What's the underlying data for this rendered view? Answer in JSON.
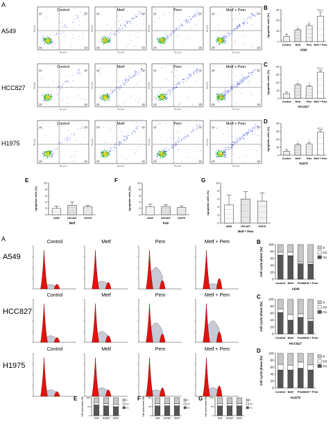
{
  "figure": {
    "top_panel_letter": "A",
    "bottom_panel_letter": "A",
    "cell_lines": [
      "A549",
      "HCC827",
      "H1975"
    ],
    "treatments": [
      "Control",
      "Metf",
      "Pem",
      "Metf + Pem"
    ],
    "flow_axis_x": "FL1-H",
    "flow_axis_y": "FL2-H",
    "quadrants": [
      "Q1",
      "Q2",
      "Q3",
      "Q4"
    ],
    "dot_colors": {
      "low": "#2a3cd6",
      "mid": "#19b319",
      "high": "#e0d400"
    },
    "histogram_fill": "#e0130f",
    "histogram_shade": "#c9c9d6"
  },
  "chart_data": [
    {
      "id": "B",
      "type": "bar",
      "panel_label": "B",
      "categories": [
        "Control",
        "Metf",
        "Pem",
        "Metf + Pem"
      ],
      "values": [
        5,
        11,
        15,
        24
      ],
      "errors": [
        2,
        1,
        1.5,
        4
      ],
      "annotations": [
        "",
        "*",
        "*",
        "#,*,△"
      ],
      "ylabel": "Apoptotic cells (%)",
      "xlabel": "A549",
      "ylim": [
        0,
        30
      ],
      "yticks": [
        0,
        10,
        20,
        30
      ]
    },
    {
      "id": "C",
      "type": "bar",
      "panel_label": "C",
      "categories": [
        "Control",
        "Metf",
        "Pem",
        "Metf + Pem"
      ],
      "values": [
        6,
        17,
        15,
        33
      ],
      "errors": [
        2,
        1.5,
        1.5,
        2.5
      ],
      "annotations": [
        "",
        "*",
        "*",
        "#,*,△"
      ],
      "ylabel": "Apoptotic cells (%)",
      "xlabel": "HCC827",
      "ylim": [
        0,
        40
      ],
      "yticks": [
        0,
        10,
        20,
        30,
        40
      ]
    },
    {
      "id": "D",
      "type": "bar",
      "panel_label": "D",
      "categories": [
        "Control",
        "Metf",
        "Pem",
        "Metf + Pem"
      ],
      "values": [
        5,
        13,
        14,
        29
      ],
      "errors": [
        2,
        1.5,
        2,
        2.5
      ],
      "annotations": [
        "",
        "*",
        "*",
        "#,*,△"
      ],
      "ylabel": "Apoptotic cells (%)",
      "xlabel": "H1975",
      "ylim": [
        0,
        40
      ],
      "yticks": [
        0,
        10,
        20,
        30,
        40
      ]
    },
    {
      "id": "E",
      "type": "bar",
      "panel_label": "E",
      "categories": [
        "A549",
        "HCC827",
        "H1975"
      ],
      "values": [
        2,
        3,
        2.5
      ],
      "errors": [
        0.7,
        1,
        0.5
      ],
      "ylabel": "Apoptotic cells (%)",
      "xlabel": "Metf",
      "ylim": [
        0,
        10
      ],
      "yticks": [
        0,
        2,
        4,
        6,
        8,
        10
      ]
    },
    {
      "id": "F",
      "type": "bar",
      "panel_label": "F",
      "categories": [
        "A549",
        "HCC827",
        "H1975"
      ],
      "values": [
        2.5,
        2.6,
        2.3
      ],
      "errors": [
        0.8,
        0.6,
        0.5
      ],
      "ylabel": "Apoptotic cells (%)",
      "xlabel": "Pem",
      "ylim": [
        0,
        10
      ],
      "yticks": [
        0,
        2,
        4,
        6,
        8,
        10
      ]
    },
    {
      "id": "G",
      "type": "bar",
      "panel_label": "G",
      "categories": [
        "A549",
        "HCC827",
        "H1975"
      ],
      "values": [
        4.5,
        6,
        5.5
      ],
      "errors": [
        2.5,
        1.8,
        2
      ],
      "ylabel": "Apoptotic cells (%)",
      "xlabel": "Metf + Pem",
      "ylim": [
        0,
        10
      ],
      "yticks": [
        0,
        2,
        4,
        6,
        8,
        10
      ]
    },
    {
      "id": "B2",
      "type": "bar",
      "stacked": true,
      "panel_label": "B",
      "categories": [
        "Control",
        "Metf",
        "Pem",
        "Metf + Pem"
      ],
      "series": [
        {
          "name": "G1",
          "values": [
            70,
            68,
            45,
            44
          ],
          "color": "#555555"
        },
        {
          "name": "G2",
          "values": [
            8,
            10,
            5,
            5
          ],
          "color": "#ffffff"
        },
        {
          "name": "S",
          "values": [
            22,
            22,
            50,
            51
          ],
          "color": "#c7c7c7"
        }
      ],
      "ylabel": "Cell cycle phase (%)",
      "xlabel": "A549",
      "ylim": [
        0,
        100
      ],
      "yticks": [
        0,
        20,
        40,
        60,
        80,
        100
      ]
    },
    {
      "id": "C2",
      "type": "bar",
      "stacked": true,
      "panel_label": "C",
      "categories": [
        "Control",
        "Metf",
        "Pem",
        "Metf + Pem"
      ],
      "series": [
        {
          "name": "G1",
          "values": [
            62,
            40,
            48,
            37
          ],
          "color": "#555555"
        },
        {
          "name": "G2",
          "values": [
            10,
            16,
            10,
            7
          ],
          "color": "#ffffff"
        },
        {
          "name": "S",
          "values": [
            28,
            44,
            42,
            56
          ],
          "color": "#c7c7c7"
        }
      ],
      "ylabel": "Cell cycle phase (%)",
      "xlabel": "HCC827",
      "ylim": [
        0,
        100
      ],
      "yticks": [
        0,
        20,
        40,
        60,
        80,
        100
      ]
    },
    {
      "id": "D2",
      "type": "bar",
      "stacked": true,
      "panel_label": "D",
      "categories": [
        "Control",
        "Metf",
        "Pem",
        "Metf + Pem"
      ],
      "series": [
        {
          "name": "G1",
          "values": [
            52,
            52,
            57,
            52
          ],
          "color": "#555555"
        },
        {
          "name": "G2",
          "values": [
            16,
            14,
            18,
            15
          ],
          "color": "#ffffff"
        },
        {
          "name": "S",
          "values": [
            32,
            34,
            25,
            33
          ],
          "color": "#c7c7c7"
        }
      ],
      "ylabel": "Cell cycle phase (%)",
      "xlabel": "H1975",
      "ylim": [
        0,
        100
      ],
      "yticks": [
        0,
        20,
        40,
        60,
        80,
        100
      ]
    },
    {
      "id": "E2",
      "type": "bar",
      "stacked": true,
      "panel_label": "E",
      "categories": [
        "A549",
        "HCC827",
        "H1975"
      ],
      "series": [
        {
          "name": "G1",
          "values": [
            60,
            55,
            50
          ],
          "color": "#555555"
        },
        {
          "name": "G2",
          "values": [
            12,
            12,
            14
          ],
          "color": "#ffffff"
        },
        {
          "name": "S",
          "values": [
            28,
            33,
            36
          ],
          "color": "#c7c7c7"
        }
      ],
      "ylabel": "Cell cycle phase (%)",
      "xlabel": "",
      "ylim": [
        0,
        100
      ],
      "yticks": [
        0,
        50,
        100
      ]
    },
    {
      "id": "F2",
      "type": "bar",
      "stacked": true,
      "panel_label": "F",
      "categories": [
        "A549",
        "HCC827",
        "H1975"
      ],
      "series": [
        {
          "name": "G1",
          "values": [
            55,
            55,
            55
          ],
          "color": "#555555"
        },
        {
          "name": "G2",
          "values": [
            12,
            12,
            12
          ],
          "color": "#ffffff"
        },
        {
          "name": "S",
          "values": [
            33,
            33,
            33
          ],
          "color": "#c7c7c7"
        }
      ],
      "ylabel": "Cell cycle phase (%)",
      "xlabel": "",
      "ylim": [
        0,
        100
      ],
      "yticks": [
        0,
        50,
        100
      ]
    },
    {
      "id": "G2",
      "type": "bar",
      "stacked": true,
      "panel_label": "G",
      "categories": [
        "A549",
        "HCC827",
        "H1975"
      ],
      "series": [
        {
          "name": "G1",
          "values": [
            55,
            55,
            55
          ],
          "color": "#555555"
        },
        {
          "name": "G2",
          "values": [
            12,
            12,
            12
          ],
          "color": "#ffffff"
        },
        {
          "name": "S",
          "values": [
            33,
            33,
            33
          ],
          "color": "#c7c7c7"
        }
      ],
      "ylabel": "Cell cycle phase (%)",
      "xlabel": "",
      "ylim": [
        0,
        100
      ],
      "yticks": [
        0,
        50,
        100
      ]
    }
  ]
}
